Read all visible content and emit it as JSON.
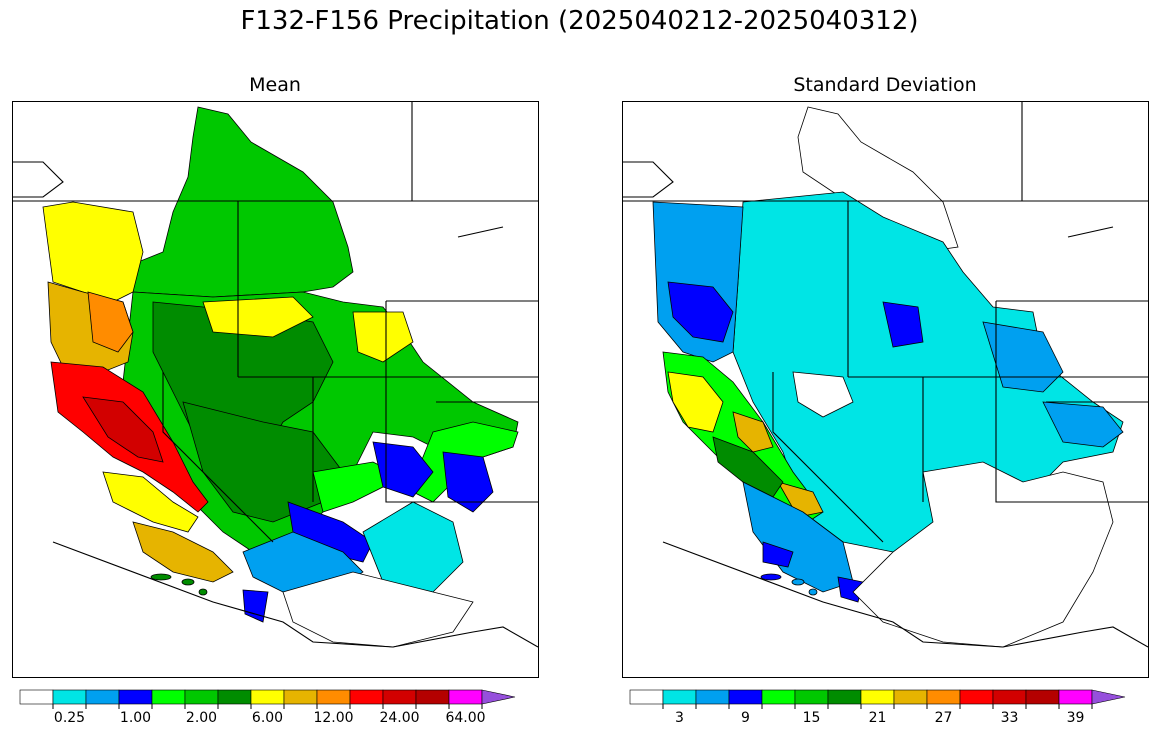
{
  "title": "F132-F156 Precipitation (2025040212-2025040312)",
  "panels": [
    {
      "title": "Mean",
      "colorbar": {
        "colors": [
          "#ffffff",
          "#00e5e5",
          "#00a0f0",
          "#0000ff",
          "#00ff00",
          "#00c800",
          "#008c00",
          "#ffff00",
          "#e6b400",
          "#ff8c00",
          "#ff0000",
          "#d20000",
          "#b40000",
          "#ff00ff",
          "#9650dc"
        ],
        "tick_labels": [
          "0.25",
          "1.00",
          "2.00",
          "6.00",
          "12.00",
          "24.00",
          "64.00"
        ],
        "extend": "max"
      }
    },
    {
      "title": "Standard Deviation",
      "colorbar": {
        "colors": [
          "#ffffff",
          "#00e5e5",
          "#00a0f0",
          "#0000ff",
          "#00ff00",
          "#00c800",
          "#008c00",
          "#ffff00",
          "#e6b400",
          "#ff8c00",
          "#ff0000",
          "#d20000",
          "#b40000",
          "#ff00ff",
          "#9650dc"
        ],
        "tick_labels": [
          "3",
          "9",
          "15",
          "21",
          "27",
          "33",
          "39"
        ],
        "extend": "max"
      }
    }
  ]
}
